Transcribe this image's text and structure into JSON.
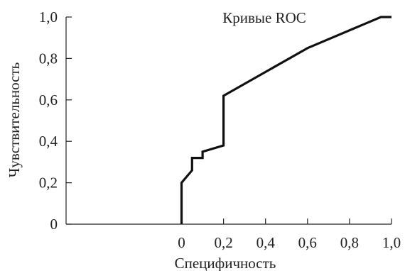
{
  "chart_data": {
    "type": "line",
    "title": "Кривые ROC",
    "xlabel": "Специфичность",
    "ylabel": "Чувствительность",
    "xlim": [
      -0.55,
      1.0
    ],
    "ylim": [
      0,
      1.0
    ],
    "x_ticks": [
      0,
      0.2,
      0.4,
      0.6,
      0.8,
      1.0
    ],
    "x_tick_labels": [
      "0",
      "0,2",
      "0,4",
      "0,6",
      "0,8",
      "1,0"
    ],
    "y_ticks": [
      0,
      0.2,
      0.4,
      0.6,
      0.8,
      1.0
    ],
    "y_tick_labels": [
      "0",
      "0,2",
      "0,4",
      "0,6",
      "0,8",
      "1,0"
    ],
    "grid": false,
    "legend": "none",
    "series": [
      {
        "color": "#111111",
        "points": [
          [
            0.0,
            0.0
          ],
          [
            0.0,
            0.2
          ],
          [
            0.05,
            0.26
          ],
          [
            0.05,
            0.32
          ],
          [
            0.1,
            0.32
          ],
          [
            0.1,
            0.35
          ],
          [
            0.2,
            0.38
          ],
          [
            0.2,
            0.62
          ],
          [
            0.6,
            0.85
          ],
          [
            0.95,
            1.0
          ],
          [
            1.0,
            1.0
          ]
        ]
      }
    ]
  }
}
